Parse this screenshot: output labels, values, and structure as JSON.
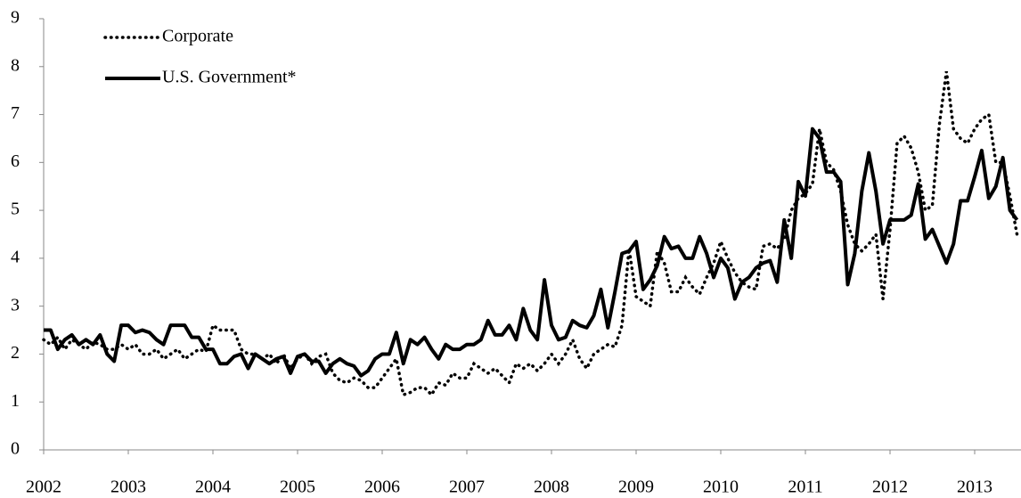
{
  "chart_data": {
    "type": "line",
    "categories": [
      "2002",
      null,
      null,
      null,
      null,
      null,
      null,
      null,
      null,
      null,
      null,
      null,
      "2003",
      null,
      null,
      null,
      null,
      null,
      null,
      null,
      null,
      null,
      null,
      null,
      "2004",
      null,
      null,
      null,
      null,
      null,
      null,
      null,
      null,
      null,
      null,
      null,
      "2005",
      null,
      null,
      null,
      null,
      null,
      null,
      null,
      null,
      null,
      null,
      null,
      "2006",
      null,
      null,
      null,
      null,
      null,
      null,
      null,
      null,
      null,
      null,
      null,
      "2007",
      null,
      null,
      null,
      null,
      null,
      null,
      null,
      null,
      null,
      null,
      null,
      "2008",
      null,
      null,
      null,
      null,
      null,
      null,
      null,
      null,
      null,
      null,
      null,
      "2009",
      null,
      null,
      null,
      null,
      null,
      null,
      null,
      null,
      null,
      null,
      null,
      "2010",
      null,
      null,
      null,
      null,
      null,
      null,
      null,
      null,
      null,
      null,
      null,
      "2011",
      null,
      null,
      null,
      null,
      null,
      null,
      null,
      null,
      null,
      null,
      null,
      "2012",
      null,
      null,
      null,
      null,
      null,
      null,
      null,
      null,
      null,
      null,
      null,
      "2013",
      null,
      null,
      null,
      null,
      null,
      null
    ],
    "series": [
      {
        "name": "Corporate",
        "color": "#000000",
        "style": "dotted",
        "values": [
          2.3,
          2.2,
          2.35,
          2.1,
          2.3,
          2.2,
          2.1,
          2.25,
          2.2,
          2.1,
          2.1,
          2.2,
          2.1,
          2.2,
          2.0,
          2.0,
          2.1,
          1.9,
          2.0,
          2.1,
          1.9,
          2.0,
          2.1,
          2.05,
          2.6,
          2.5,
          2.5,
          2.5,
          2.1,
          2.0,
          2.0,
          1.9,
          2.0,
          1.8,
          2.0,
          1.7,
          1.9,
          2.0,
          1.8,
          1.95,
          2.0,
          1.6,
          1.45,
          1.4,
          1.5,
          1.45,
          1.3,
          1.3,
          1.5,
          1.7,
          1.9,
          1.15,
          1.2,
          1.3,
          1.3,
          1.15,
          1.4,
          1.35,
          1.6,
          1.5,
          1.5,
          1.8,
          1.7,
          1.6,
          1.7,
          1.55,
          1.4,
          1.8,
          1.7,
          1.8,
          1.65,
          1.8,
          2.0,
          1.8,
          2.0,
          2.3,
          1.9,
          1.7,
          2.0,
          2.1,
          2.2,
          2.15,
          2.6,
          4.2,
          3.2,
          3.1,
          3.0,
          4.15,
          3.9,
          3.3,
          3.3,
          3.6,
          3.4,
          3.25,
          3.6,
          3.9,
          4.35,
          4.0,
          3.7,
          3.5,
          3.4,
          3.35,
          4.25,
          4.3,
          4.2,
          4.4,
          5.0,
          5.25,
          5.35,
          5.55,
          6.7,
          6.0,
          5.85,
          5.4,
          4.7,
          4.3,
          4.15,
          4.3,
          4.5,
          3.15,
          4.6,
          6.4,
          6.55,
          6.3,
          5.8,
          5.0,
          5.1,
          6.8,
          7.9,
          6.7,
          6.5,
          6.4,
          6.7,
          6.9,
          7.0,
          6.0,
          6.0,
          5.3,
          4.5
        ]
      },
      {
        "name": "U.S. Government*",
        "color": "#000000",
        "style": "solid",
        "values": [
          2.5,
          2.5,
          2.1,
          2.3,
          2.4,
          2.2,
          2.3,
          2.2,
          2.4,
          2.0,
          1.85,
          2.6,
          2.6,
          2.45,
          2.5,
          2.45,
          2.3,
          2.2,
          2.6,
          2.6,
          2.6,
          2.35,
          2.35,
          2.1,
          2.1,
          1.8,
          1.8,
          1.95,
          2.0,
          1.7,
          2.0,
          1.9,
          1.8,
          1.9,
          1.95,
          1.6,
          1.95,
          2.0,
          1.85,
          1.85,
          1.6,
          1.8,
          1.9,
          1.8,
          1.75,
          1.55,
          1.65,
          1.9,
          2.0,
          2.0,
          2.45,
          1.8,
          2.3,
          2.2,
          2.35,
          2.1,
          1.9,
          2.2,
          2.1,
          2.1,
          2.2,
          2.2,
          2.3,
          2.7,
          2.4,
          2.4,
          2.6,
          2.3,
          2.95,
          2.5,
          2.3,
          3.55,
          2.6,
          2.3,
          2.35,
          2.7,
          2.6,
          2.55,
          2.8,
          3.35,
          2.55,
          3.3,
          4.1,
          4.15,
          4.35,
          3.35,
          3.55,
          3.85,
          4.45,
          4.2,
          4.25,
          4.0,
          4.0,
          4.45,
          4.1,
          3.6,
          4.0,
          3.8,
          3.15,
          3.5,
          3.6,
          3.8,
          3.9,
          3.95,
          3.5,
          4.8,
          4.0,
          5.6,
          5.3,
          6.7,
          6.5,
          5.8,
          5.8,
          5.6,
          3.45,
          4.1,
          5.4,
          6.2,
          5.4,
          4.3,
          4.8,
          4.8,
          4.8,
          4.9,
          5.55,
          4.4,
          4.6,
          4.25,
          3.9,
          4.3,
          5.2,
          5.2,
          5.7,
          6.25,
          5.25,
          5.5,
          6.1,
          5.0,
          4.8
        ]
      }
    ],
    "ylim": [
      0,
      9
    ],
    "yticks": [
      0,
      1,
      2,
      3,
      4,
      5,
      6,
      7,
      8,
      9
    ],
    "grid": false,
    "legend": "upper left"
  }
}
